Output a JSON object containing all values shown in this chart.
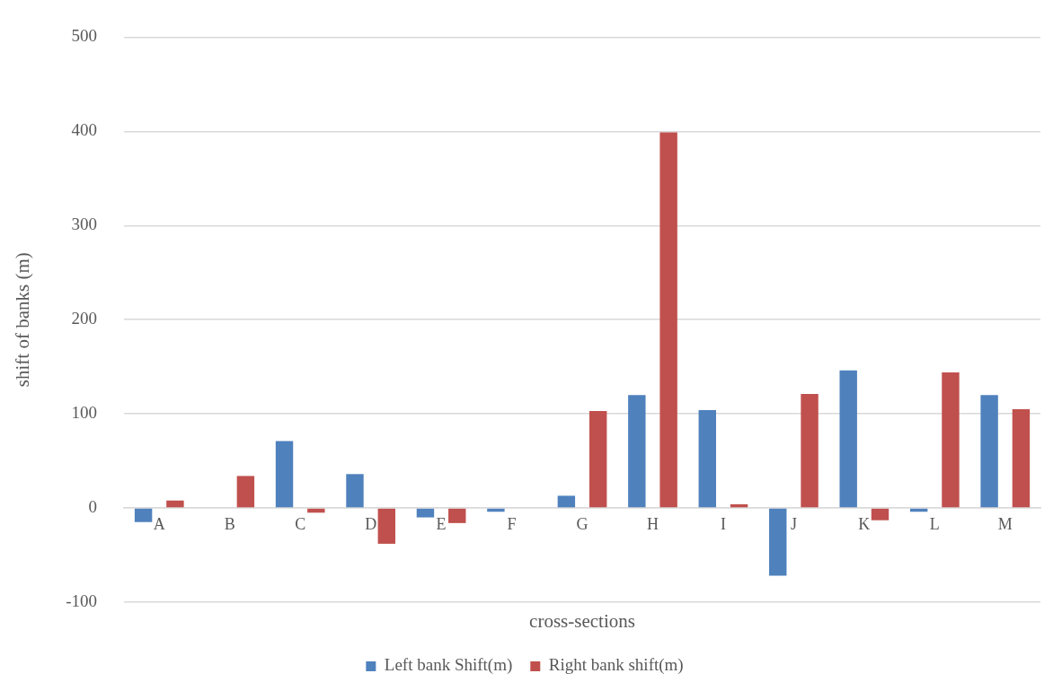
{
  "chart_data": {
    "type": "bar",
    "xlabel": "cross-sections",
    "ylabel": "shift of banks (m)",
    "categories": [
      "A",
      "B",
      "C",
      "D",
      "E",
      "F",
      "G",
      "H",
      "I",
      "J",
      "K",
      "L",
      "M"
    ],
    "series": [
      {
        "name": "Left bank Shift(m)",
        "color": "#4f81bd",
        "values": [
          -15,
          0,
          71,
          36,
          -10,
          -4,
          13,
          120,
          104,
          -72,
          146,
          -4,
          120
        ]
      },
      {
        "name": "Right bank shift(m)",
        "color": "#c0504d",
        "values": [
          8,
          34,
          -5,
          -38,
          -16,
          0,
          103,
          399,
          4,
          121,
          -13,
          144,
          105
        ]
      }
    ],
    "ylim": [
      -100,
      500
    ],
    "yticks": [
      -100,
      0,
      100,
      200,
      300,
      400,
      500
    ],
    "grid": "y",
    "legend": "bottom"
  }
}
